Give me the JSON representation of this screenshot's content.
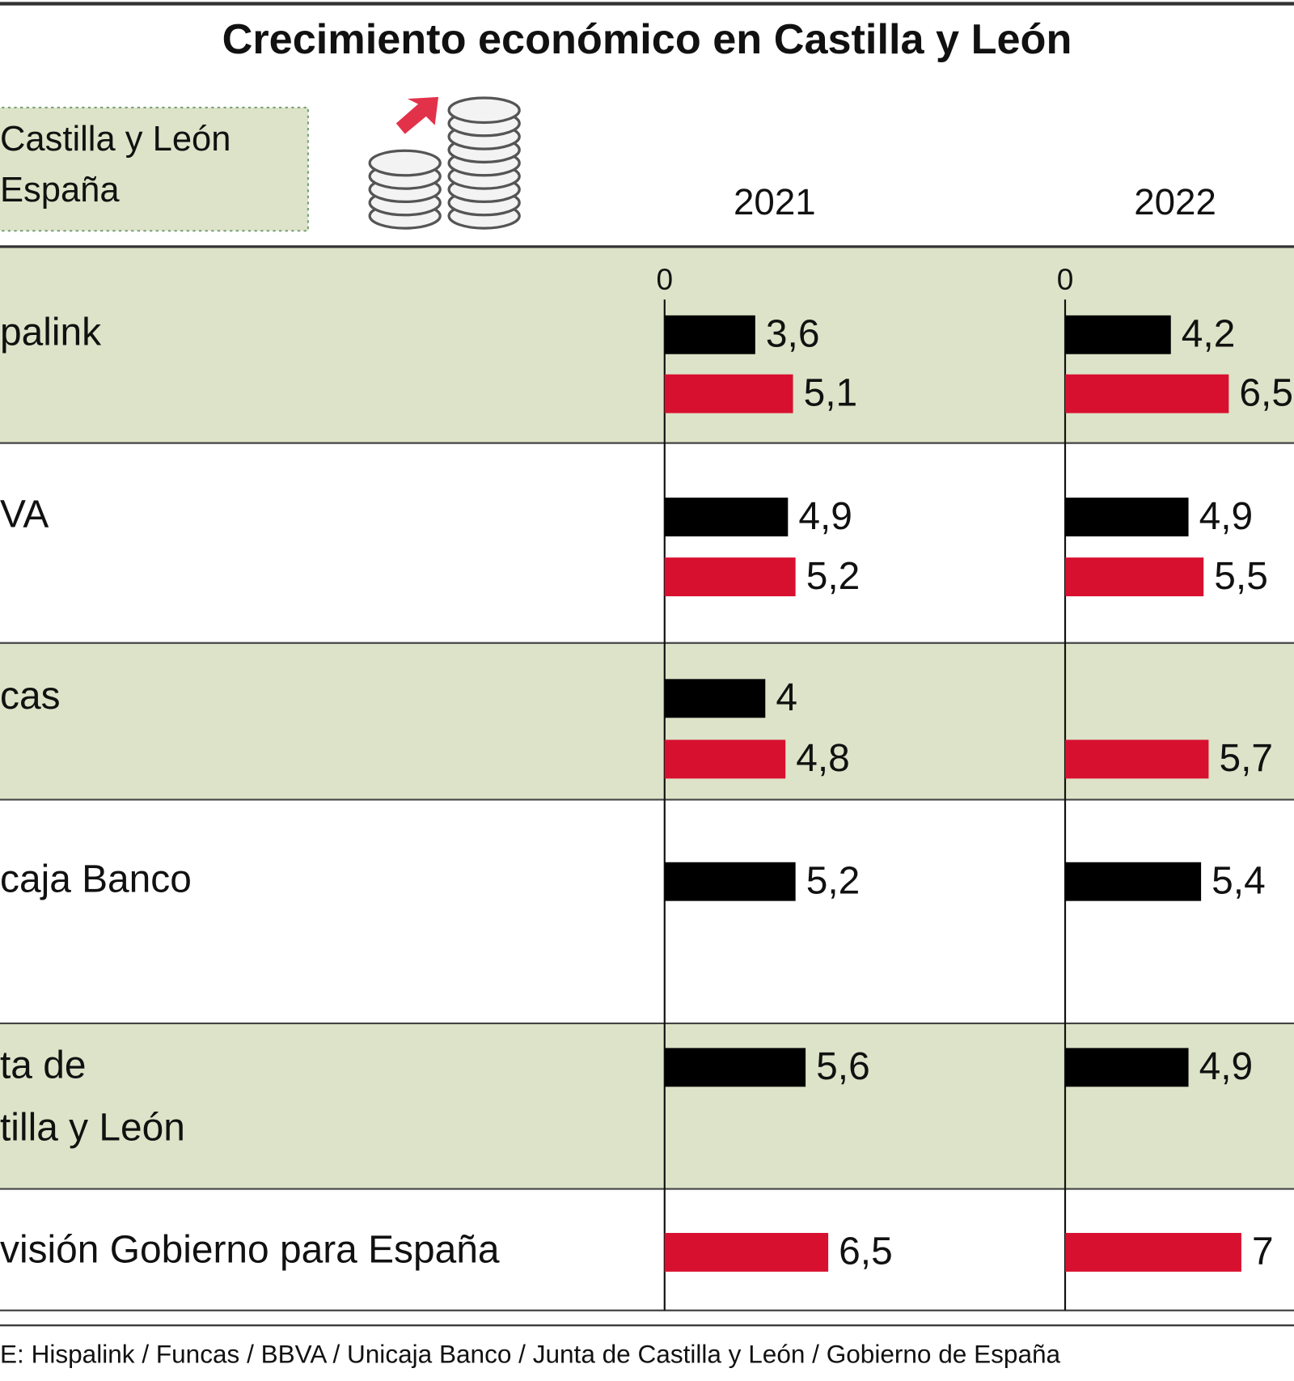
{
  "title": "Crecimiento económico en Castilla y León",
  "source": "E: Hispalink / Funcas / BBVA / Unicaja Banco / Junta de Castilla y León / Gobierno de España",
  "chart_data": [
    {
      "type": "bar",
      "title": "2021",
      "categories": [
        "palink",
        "VA",
        "cas",
        "caja Banco",
        "ta de\ntilla y León",
        "visión Gobierno para España"
      ],
      "series": [
        {
          "name": "Castilla y León",
          "color": "#000000",
          "values": [
            3.6,
            4.9,
            4,
            5.2,
            5.6,
            null
          ],
          "value_labels": [
            "3,6",
            "4,9",
            "4",
            "5,2",
            "5,6",
            null
          ]
        },
        {
          "name": "España",
          "color": "#d8102f",
          "values": [
            5.1,
            5.2,
            4.8,
            null,
            null,
            6.5
          ],
          "value_labels": [
            "5,1",
            "5,2",
            "4,8",
            null,
            null,
            "6,5"
          ]
        }
      ],
      "xlim": [
        0,
        16
      ],
      "xticks": [
        0
      ]
    },
    {
      "type": "bar",
      "title": "2022",
      "categories": [
        "palink",
        "VA",
        "cas",
        "caja Banco",
        "ta de\ntilla y León",
        "visión Gobierno para España"
      ],
      "series": [
        {
          "name": "Castilla y León",
          "color": "#000000",
          "values": [
            4.2,
            4.9,
            null,
            5.4,
            4.9,
            null
          ],
          "value_labels": [
            "4,2",
            "4,9",
            null,
            "5,4",
            "4,9",
            null
          ]
        },
        {
          "name": "España",
          "color": "#d8102f",
          "values": [
            6.5,
            5.5,
            5.7,
            null,
            null,
            7
          ],
          "value_labels": [
            "6,5",
            "5,5",
            "5,7",
            null,
            null,
            "7"
          ]
        }
      ],
      "xlim": [
        0,
        16
      ],
      "xticks": [
        0
      ]
    }
  ]
}
